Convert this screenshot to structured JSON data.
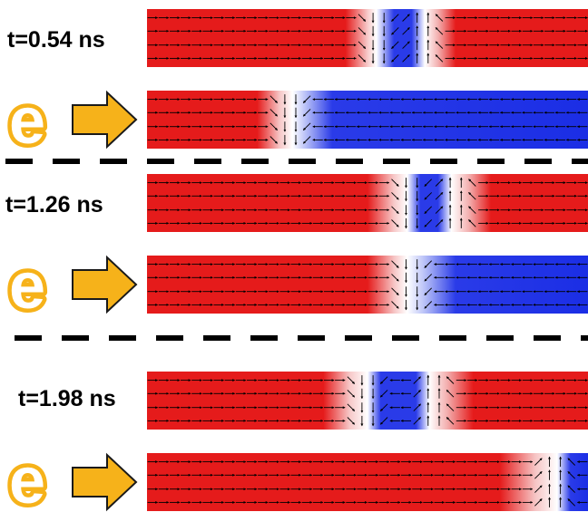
{
  "rows": [
    {
      "time_label": "t=0.54 ns",
      "type": "double_wall"
    },
    {
      "electron_label": "e",
      "type": "single_wall"
    },
    {
      "time_label": "t=1.26 ns",
      "type": "double_wall"
    },
    {
      "electron_label": "e",
      "type": "single_wall"
    },
    {
      "time_label": "t=1.98 ns",
      "type": "double_wall"
    },
    {
      "electron_label": "e",
      "type": "single_wall"
    }
  ],
  "colors": {
    "magnetization_positive": "#e51b1b",
    "magnetization_negative": "#1b2ee5",
    "domain_wall_core": "#ffffff",
    "electron_fill": "#f6b21a",
    "electron_outline": "#1a1a1a",
    "separator": "#000000",
    "arrow": "#000000"
  },
  "icons": {
    "electron": "electron-e-glyph",
    "current_direction": "right-arrow-icon"
  }
}
